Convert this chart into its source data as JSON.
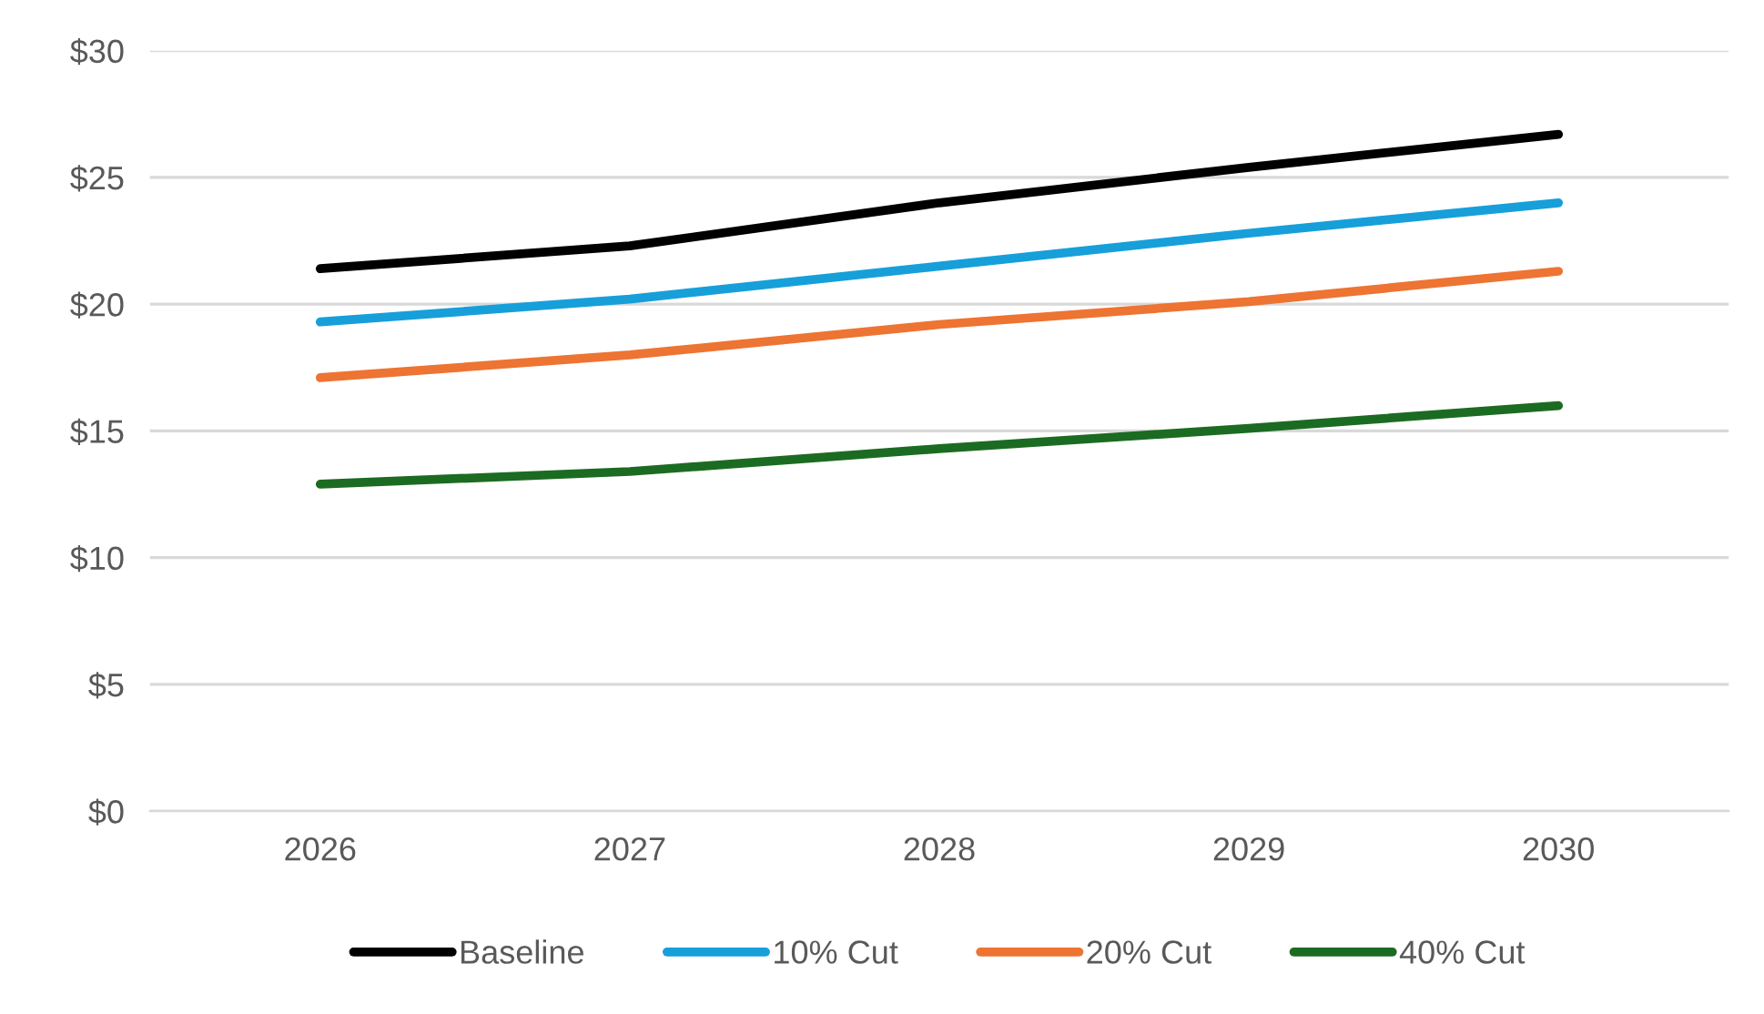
{
  "chart_data": {
    "type": "line",
    "categories": [
      "2026",
      "2027",
      "2028",
      "2029",
      "2030"
    ],
    "series": [
      {
        "name": "Baseline",
        "color": "#000000",
        "values": [
          21.4,
          22.3,
          24.0,
          25.4,
          26.7
        ]
      },
      {
        "name": "10% Cut",
        "color": "#179fda",
        "values": [
          19.3,
          20.2,
          21.5,
          22.8,
          24.0
        ]
      },
      {
        "name": "20% Cut",
        "color": "#ed7432",
        "values": [
          17.1,
          18.0,
          19.2,
          20.1,
          21.3
        ]
      },
      {
        "name": "40% Cut",
        "color": "#1c6b22",
        "values": [
          12.9,
          13.4,
          14.3,
          15.1,
          16.0
        ]
      }
    ],
    "ylim": [
      0,
      30
    ],
    "yticks": [
      {
        "value": 0,
        "label": "$0"
      },
      {
        "value": 5,
        "label": "$5"
      },
      {
        "value": 10,
        "label": "$10"
      },
      {
        "value": 15,
        "label": "$15"
      },
      {
        "value": 20,
        "label": "$20"
      },
      {
        "value": 25,
        "label": "$25"
      },
      {
        "value": 30,
        "label": "$30"
      }
    ],
    "grid": "y",
    "legend": "bottom",
    "marker": "none",
    "line_style": "solid"
  }
}
